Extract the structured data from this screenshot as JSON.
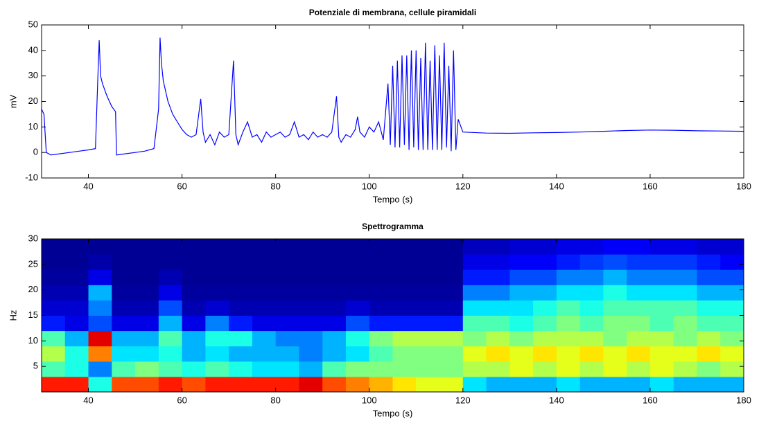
{
  "chart_data": [
    {
      "type": "line",
      "title": "Potenziale di membrana, cellule piramidali",
      "xlabel": "Tempo (s)",
      "ylabel": "mV",
      "color": "#0000ff",
      "xlim": [
        30,
        180
      ],
      "ylim": [
        -10,
        50
      ],
      "xticks": [
        40,
        60,
        80,
        100,
        120,
        140,
        160,
        180
      ],
      "yticks": [
        -10,
        0,
        10,
        20,
        30,
        40,
        50
      ],
      "x": [
        30,
        30.5,
        31,
        32,
        34,
        36,
        38,
        40,
        41.5,
        42,
        42.3,
        42.6,
        43,
        44,
        45,
        45.8,
        46,
        48,
        50,
        52,
        54,
        55,
        55.3,
        55.6,
        56,
        57,
        58,
        59,
        60,
        61,
        62,
        63,
        64,
        64.5,
        65,
        66,
        67,
        68,
        69,
        70,
        71,
        71.5,
        72,
        73,
        74,
        75,
        76,
        77,
        78,
        79,
        80,
        81,
        82,
        83,
        84,
        85,
        86,
        87,
        88,
        89,
        90,
        91,
        92,
        93,
        93.5,
        94,
        95,
        96,
        97,
        97.5,
        98,
        99,
        100,
        101,
        102,
        103,
        104,
        104.5,
        105,
        105.5,
        106,
        106.5,
        107,
        107.5,
        108,
        108.5,
        109,
        109.5,
        110,
        110.5,
        111,
        111.5,
        112,
        112.5,
        113,
        113.5,
        114,
        114.5,
        115,
        115.5,
        116,
        116.5,
        117,
        117.5,
        118,
        118.5,
        119,
        120,
        125,
        130,
        135,
        140,
        145,
        150,
        155,
        160,
        165,
        170,
        175,
        180
      ],
      "y": [
        17,
        15,
        0,
        -1,
        -0.5,
        0,
        0.5,
        1,
        1.5,
        28,
        44,
        30,
        27,
        22,
        18,
        16,
        -1,
        -0.5,
        0,
        0.5,
        1.5,
        17,
        45,
        35,
        28,
        20,
        15,
        12,
        9,
        7,
        6,
        7,
        21,
        8,
        4,
        7,
        3,
        8,
        6,
        7,
        36,
        7,
        3,
        8,
        12,
        6,
        7,
        4,
        8,
        6,
        7,
        8,
        6,
        7,
        12,
        6,
        7,
        5,
        8,
        6,
        7,
        6,
        8,
        22,
        6,
        4,
        7,
        6,
        9,
        14,
        8,
        6,
        10,
        8,
        12,
        5,
        27,
        3,
        34,
        2,
        36,
        2,
        38,
        3,
        38,
        1,
        40,
        2,
        40,
        1,
        37,
        1,
        43,
        1,
        36,
        1,
        42,
        1,
        38,
        1,
        43,
        2,
        34,
        0.5,
        40,
        1,
        13,
        8,
        7.6,
        7.5,
        7.7,
        7.8,
        8,
        8.3,
        8.6,
        8.8,
        8.7,
        8.5,
        8.4,
        8.3
      ]
    },
    {
      "type": "heatmap",
      "title": "Spettrogramma",
      "xlabel": "Tempo (s)",
      "ylabel": "Hz",
      "colormap": "jet",
      "xlim": [
        30,
        180
      ],
      "ylim": [
        0,
        30
      ],
      "xticks": [
        40,
        60,
        80,
        100,
        120,
        140,
        160,
        180
      ],
      "yticks": [
        5,
        10,
        15,
        20,
        25,
        30
      ],
      "x_edges": [
        30,
        35,
        40,
        45,
        50,
        55,
        60,
        65,
        70,
        75,
        80,
        85,
        90,
        95,
        100,
        105,
        110,
        115,
        120,
        125,
        130,
        135,
        140,
        145,
        150,
        155,
        160,
        165,
        170,
        175,
        180
      ],
      "y_edges": [
        0,
        3,
        6,
        9,
        12,
        15,
        18,
        21,
        24,
        27,
        30
      ],
      "z": [
        [
          0.85,
          0.85,
          0.4,
          0.8,
          0.8,
          0.85,
          0.8,
          0.85,
          0.85,
          0.85,
          0.85,
          0.9,
          0.8,
          0.75,
          0.7,
          0.65,
          0.6,
          0.6,
          0.35,
          0.3,
          0.3,
          0.3,
          0.35,
          0.3,
          0.3,
          0.3,
          0.35,
          0.3,
          0.3,
          0.3
        ],
        [
          0.45,
          0.4,
          0.25,
          0.45,
          0.5,
          0.45,
          0.4,
          0.45,
          0.4,
          0.35,
          0.35,
          0.3,
          0.45,
          0.5,
          0.5,
          0.5,
          0.5,
          0.5,
          0.55,
          0.55,
          0.6,
          0.55,
          0.6,
          0.55,
          0.6,
          0.55,
          0.6,
          0.55,
          0.5,
          0.55
        ],
        [
          0.55,
          0.4,
          0.75,
          0.35,
          0.35,
          0.4,
          0.3,
          0.35,
          0.3,
          0.3,
          0.3,
          0.25,
          0.3,
          0.35,
          0.45,
          0.5,
          0.5,
          0.5,
          0.6,
          0.65,
          0.6,
          0.65,
          0.6,
          0.65,
          0.6,
          0.65,
          0.6,
          0.6,
          0.65,
          0.6
        ],
        [
          0.45,
          0.3,
          0.9,
          0.3,
          0.3,
          0.45,
          0.3,
          0.4,
          0.4,
          0.3,
          0.25,
          0.25,
          0.3,
          0.4,
          0.5,
          0.55,
          0.55,
          0.55,
          0.5,
          0.55,
          0.5,
          0.55,
          0.55,
          0.55,
          0.5,
          0.55,
          0.55,
          0.5,
          0.55,
          0.5
        ],
        [
          0.15,
          0.1,
          0.2,
          0.1,
          0.1,
          0.3,
          0.1,
          0.25,
          0.15,
          0.1,
          0.1,
          0.1,
          0.1,
          0.2,
          0.15,
          0.15,
          0.15,
          0.15,
          0.45,
          0.45,
          0.4,
          0.45,
          0.5,
          0.45,
          0.5,
          0.5,
          0.45,
          0.5,
          0.45,
          0.45
        ],
        [
          0.08,
          0.08,
          0.25,
          0.05,
          0.05,
          0.2,
          0.05,
          0.08,
          0.05,
          0.05,
          0.05,
          0.05,
          0.05,
          0.08,
          0.05,
          0.05,
          0.05,
          0.05,
          0.35,
          0.35,
          0.35,
          0.4,
          0.45,
          0.4,
          0.45,
          0.45,
          0.45,
          0.45,
          0.4,
          0.4
        ],
        [
          0.05,
          0.05,
          0.3,
          0.03,
          0.03,
          0.1,
          0.03,
          0.03,
          0.03,
          0.03,
          0.03,
          0.03,
          0.03,
          0.03,
          0.03,
          0.03,
          0.03,
          0.03,
          0.25,
          0.25,
          0.3,
          0.3,
          0.35,
          0.35,
          0.4,
          0.35,
          0.35,
          0.35,
          0.3,
          0.3
        ],
        [
          0.03,
          0.03,
          0.1,
          0.02,
          0.02,
          0.05,
          0.02,
          0.02,
          0.02,
          0.02,
          0.02,
          0.02,
          0.02,
          0.02,
          0.02,
          0.02,
          0.02,
          0.02,
          0.15,
          0.15,
          0.2,
          0.2,
          0.25,
          0.25,
          0.3,
          0.25,
          0.25,
          0.25,
          0.2,
          0.2
        ],
        [
          0.02,
          0.02,
          0.04,
          0.02,
          0.02,
          0.02,
          0.02,
          0.02,
          0.02,
          0.02,
          0.02,
          0.02,
          0.02,
          0.02,
          0.02,
          0.02,
          0.02,
          0.02,
          0.1,
          0.1,
          0.12,
          0.12,
          0.15,
          0.18,
          0.2,
          0.18,
          0.18,
          0.18,
          0.15,
          0.12
        ],
        [
          0.02,
          0.02,
          0.02,
          0.02,
          0.02,
          0.02,
          0.02,
          0.02,
          0.02,
          0.02,
          0.02,
          0.02,
          0.02,
          0.02,
          0.02,
          0.02,
          0.02,
          0.02,
          0.06,
          0.06,
          0.08,
          0.08,
          0.1,
          0.1,
          0.12,
          0.12,
          0.1,
          0.1,
          0.08,
          0.08
        ]
      ]
    }
  ]
}
